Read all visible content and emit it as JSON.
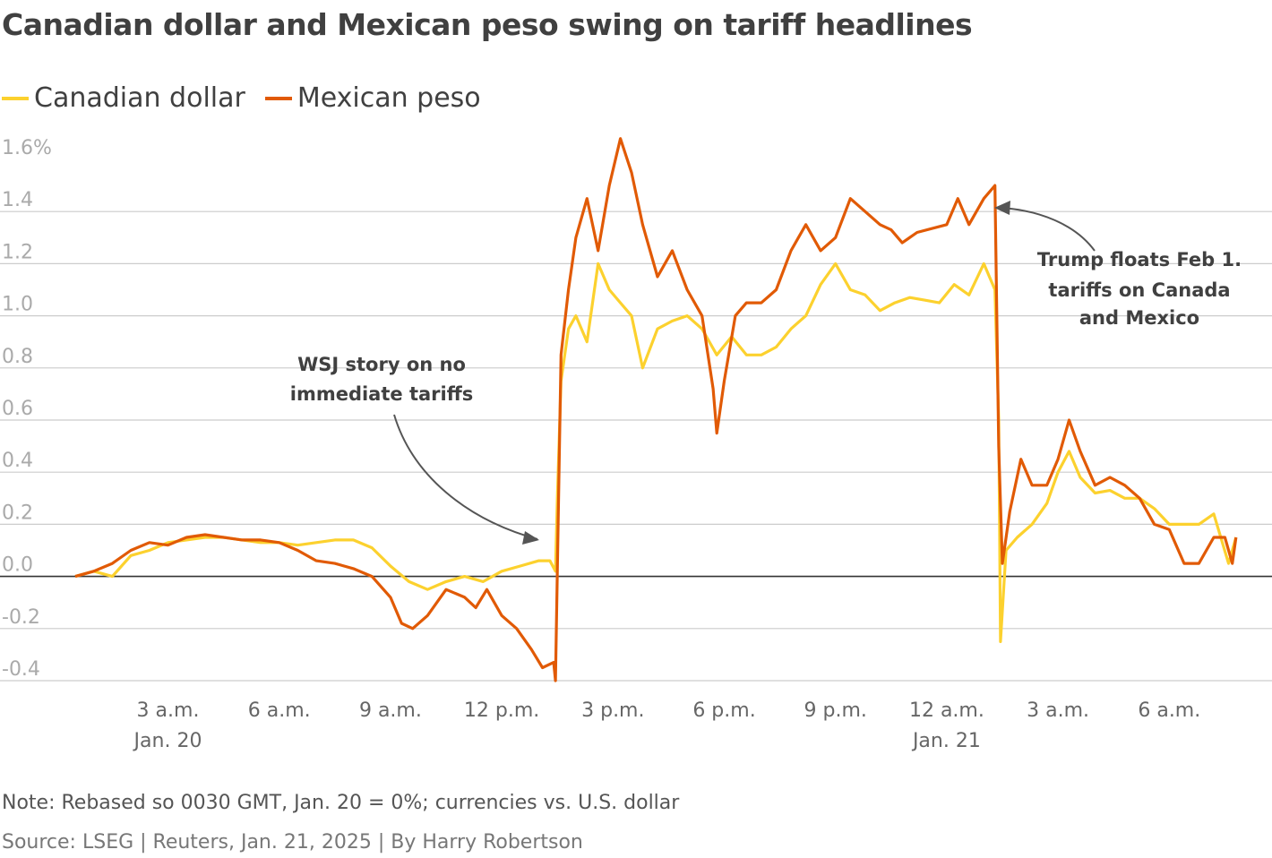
{
  "title": "Canadian dollar and Mexican peso swing on tariff headlines",
  "note": "Note: Rebased so 0030 GMT, Jan. 20 = 0%; currencies vs. U.S. dollar",
  "source": "Source: LSEG | Reuters, Jan. 21, 2025 | By Harry Robertson",
  "colors": {
    "cad": "#FCD12E",
    "mxn": "#E15A05",
    "grid": "#cccccc",
    "zero": "#333333",
    "annotation": "#555555"
  },
  "chart_data": {
    "type": "line",
    "x_unit": "hours since midnight GMT, Jan. 20",
    "xlim": [
      0.5,
      32.0
    ],
    "ylim": [
      -0.4,
      1.6
    ],
    "y_ticks": [
      1.6,
      1.4,
      1.2,
      1.0,
      0.8,
      0.6,
      0.4,
      0.2,
      0.0,
      -0.2,
      -0.4
    ],
    "y_tick_labels": [
      "1.6%",
      "1.4",
      "1.2",
      "1.0",
      "0.8",
      "0.6",
      "0.4",
      "0.2",
      "0.0",
      "-0.2",
      "-0.4"
    ],
    "x_ticks": [
      {
        "x": 3,
        "label": "3 a.m.",
        "sub": "Jan. 20"
      },
      {
        "x": 6,
        "label": "6 a.m.",
        "sub": ""
      },
      {
        "x": 9,
        "label": "9 a.m.",
        "sub": ""
      },
      {
        "x": 12,
        "label": "12 p.m.",
        "sub": ""
      },
      {
        "x": 15,
        "label": "3 p.m.",
        "sub": ""
      },
      {
        "x": 18,
        "label": "6 p.m.",
        "sub": ""
      },
      {
        "x": 21,
        "label": "9 p.m.",
        "sub": ""
      },
      {
        "x": 24,
        "label": "12 a.m.",
        "sub": "Jan. 21"
      },
      {
        "x": 27,
        "label": "3 a.m.",
        "sub": ""
      },
      {
        "x": 30,
        "label": "6 a.m.",
        "sub": ""
      }
    ],
    "legend": "top-left",
    "grid": true,
    "series": [
      {
        "name": "Canadian dollar",
        "color": "#FCD12E",
        "points": [
          [
            0.5,
            0.0
          ],
          [
            1.0,
            0.02
          ],
          [
            1.5,
            0.0
          ],
          [
            2.0,
            0.08
          ],
          [
            2.5,
            0.1
          ],
          [
            3.0,
            0.13
          ],
          [
            3.5,
            0.14
          ],
          [
            4.0,
            0.15
          ],
          [
            4.5,
            0.15
          ],
          [
            5.0,
            0.14
          ],
          [
            5.5,
            0.13
          ],
          [
            6.0,
            0.13
          ],
          [
            6.5,
            0.12
          ],
          [
            7.0,
            0.13
          ],
          [
            7.5,
            0.14
          ],
          [
            8.0,
            0.14
          ],
          [
            8.5,
            0.11
          ],
          [
            9.0,
            0.04
          ],
          [
            9.5,
            -0.02
          ],
          [
            10.0,
            -0.05
          ],
          [
            10.5,
            -0.02
          ],
          [
            11.0,
            0.0
          ],
          [
            11.5,
            -0.02
          ],
          [
            12.0,
            0.02
          ],
          [
            12.5,
            0.04
          ],
          [
            13.0,
            0.06
          ],
          [
            13.3,
            0.06
          ],
          [
            13.45,
            0.02
          ],
          [
            13.5,
            0.3
          ],
          [
            13.6,
            0.75
          ],
          [
            13.8,
            0.95
          ],
          [
            14.0,
            1.0
          ],
          [
            14.3,
            0.9
          ],
          [
            14.6,
            1.2
          ],
          [
            14.9,
            1.1
          ],
          [
            15.2,
            1.05
          ],
          [
            15.5,
            1.0
          ],
          [
            15.8,
            0.8
          ],
          [
            16.2,
            0.95
          ],
          [
            16.6,
            0.98
          ],
          [
            17.0,
            1.0
          ],
          [
            17.4,
            0.95
          ],
          [
            17.8,
            0.85
          ],
          [
            18.2,
            0.92
          ],
          [
            18.6,
            0.85
          ],
          [
            19.0,
            0.85
          ],
          [
            19.4,
            0.88
          ],
          [
            19.8,
            0.95
          ],
          [
            20.2,
            1.0
          ],
          [
            20.6,
            1.12
          ],
          [
            21.0,
            1.2
          ],
          [
            21.4,
            1.1
          ],
          [
            21.8,
            1.08
          ],
          [
            22.2,
            1.02
          ],
          [
            22.6,
            1.05
          ],
          [
            23.0,
            1.07
          ],
          [
            23.4,
            1.06
          ],
          [
            23.8,
            1.05
          ],
          [
            24.2,
            1.12
          ],
          [
            24.6,
            1.08
          ],
          [
            25.0,
            1.2
          ],
          [
            25.3,
            1.1
          ],
          [
            25.4,
            0.6
          ],
          [
            25.45,
            -0.25
          ],
          [
            25.6,
            0.1
          ],
          [
            25.9,
            0.15
          ],
          [
            26.3,
            0.2
          ],
          [
            26.7,
            0.28
          ],
          [
            27.0,
            0.4
          ],
          [
            27.3,
            0.48
          ],
          [
            27.6,
            0.38
          ],
          [
            28.0,
            0.32
          ],
          [
            28.4,
            0.33
          ],
          [
            28.8,
            0.3
          ],
          [
            29.2,
            0.3
          ],
          [
            29.6,
            0.26
          ],
          [
            30.0,
            0.2
          ],
          [
            30.4,
            0.2
          ],
          [
            30.8,
            0.2
          ],
          [
            31.2,
            0.24
          ],
          [
            31.6,
            0.05
          ],
          [
            31.8,
            0.15
          ]
        ]
      },
      {
        "name": "Mexican peso",
        "color": "#E15A05",
        "points": [
          [
            0.5,
            0.0
          ],
          [
            1.0,
            0.02
          ],
          [
            1.5,
            0.05
          ],
          [
            2.0,
            0.1
          ],
          [
            2.5,
            0.13
          ],
          [
            3.0,
            0.12
          ],
          [
            3.5,
            0.15
          ],
          [
            4.0,
            0.16
          ],
          [
            4.5,
            0.15
          ],
          [
            5.0,
            0.14
          ],
          [
            5.5,
            0.14
          ],
          [
            6.0,
            0.13
          ],
          [
            6.5,
            0.1
          ],
          [
            7.0,
            0.06
          ],
          [
            7.5,
            0.05
          ],
          [
            8.0,
            0.03
          ],
          [
            8.5,
            0.0
          ],
          [
            9.0,
            -0.08
          ],
          [
            9.3,
            -0.18
          ],
          [
            9.6,
            -0.2
          ],
          [
            10.0,
            -0.15
          ],
          [
            10.5,
            -0.05
          ],
          [
            11.0,
            -0.08
          ],
          [
            11.3,
            -0.12
          ],
          [
            11.6,
            -0.05
          ],
          [
            12.0,
            -0.15
          ],
          [
            12.4,
            -0.2
          ],
          [
            12.8,
            -0.28
          ],
          [
            13.1,
            -0.35
          ],
          [
            13.4,
            -0.33
          ],
          [
            13.45,
            -0.4
          ],
          [
            13.6,
            0.85
          ],
          [
            13.8,
            1.1
          ],
          [
            14.0,
            1.3
          ],
          [
            14.3,
            1.45
          ],
          [
            14.6,
            1.25
          ],
          [
            14.9,
            1.5
          ],
          [
            15.2,
            1.68
          ],
          [
            15.5,
            1.55
          ],
          [
            15.8,
            1.35
          ],
          [
            16.2,
            1.15
          ],
          [
            16.6,
            1.25
          ],
          [
            17.0,
            1.1
          ],
          [
            17.4,
            1.0
          ],
          [
            17.7,
            0.72
          ],
          [
            17.8,
            0.55
          ],
          [
            18.0,
            0.75
          ],
          [
            18.3,
            1.0
          ],
          [
            18.6,
            1.05
          ],
          [
            19.0,
            1.05
          ],
          [
            19.4,
            1.1
          ],
          [
            19.8,
            1.25
          ],
          [
            20.2,
            1.35
          ],
          [
            20.6,
            1.25
          ],
          [
            21.0,
            1.3
          ],
          [
            21.4,
            1.45
          ],
          [
            21.8,
            1.4
          ],
          [
            22.2,
            1.35
          ],
          [
            22.5,
            1.33
          ],
          [
            22.8,
            1.28
          ],
          [
            23.2,
            1.32
          ],
          [
            24.0,
            1.35
          ],
          [
            24.3,
            1.45
          ],
          [
            24.6,
            1.35
          ],
          [
            25.0,
            1.45
          ],
          [
            25.3,
            1.5
          ],
          [
            25.4,
            0.5
          ],
          [
            25.5,
            0.05
          ],
          [
            25.7,
            0.25
          ],
          [
            26.0,
            0.45
          ],
          [
            26.3,
            0.35
          ],
          [
            26.7,
            0.35
          ],
          [
            27.0,
            0.45
          ],
          [
            27.3,
            0.6
          ],
          [
            27.6,
            0.48
          ],
          [
            28.0,
            0.35
          ],
          [
            28.4,
            0.38
          ],
          [
            28.8,
            0.35
          ],
          [
            29.2,
            0.3
          ],
          [
            29.6,
            0.2
          ],
          [
            30.0,
            0.18
          ],
          [
            30.4,
            0.05
          ],
          [
            30.8,
            0.05
          ],
          [
            31.2,
            0.15
          ],
          [
            31.5,
            0.15
          ],
          [
            31.7,
            0.05
          ],
          [
            31.8,
            0.15
          ]
        ]
      }
    ],
    "annotations": [
      {
        "lines": [
          "WSJ story on no",
          "immediate tariffs"
        ]
      },
      {
        "lines": [
          "Trump floats Feb 1.",
          "tariffs on Canada",
          "and Mexico"
        ]
      }
    ]
  }
}
